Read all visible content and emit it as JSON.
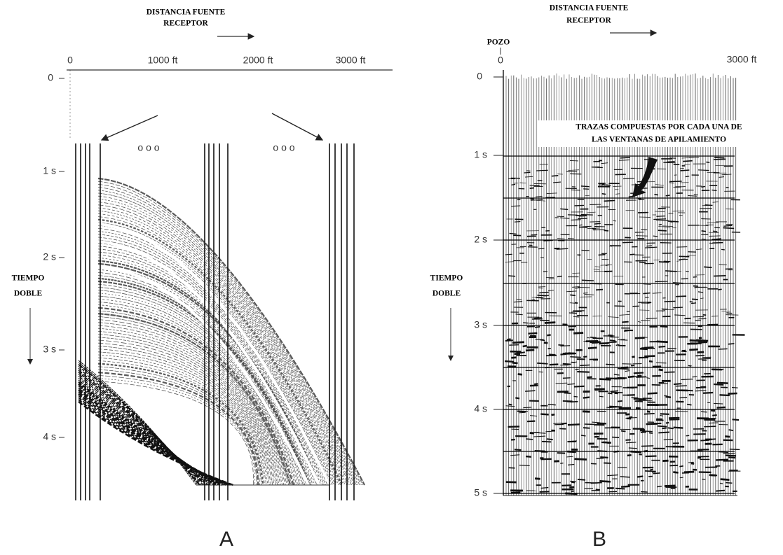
{
  "panel_a": {
    "x_axis_title": [
      "DISTANCIA FUENTE",
      "RECEPTOR"
    ],
    "x_labels": [
      "0",
      "1000 ft",
      "2000 ft",
      "3000 ft"
    ],
    "y_labels": [
      "0",
      "1 s",
      "2 s",
      "3 s",
      "4 s"
    ],
    "y_axis_title": [
      "TIEMPO",
      "DOBLE"
    ],
    "ellipses": [
      "o o o",
      "o o o"
    ],
    "label": "A"
  },
  "panel_b": {
    "x_axis_title": [
      "DISTANCIA FUENTE",
      "RECEPTOR"
    ],
    "well_label": "POZO",
    "x_labels": [
      "0",
      "3000 ft"
    ],
    "y_labels": [
      "0",
      "1 s",
      "2 s",
      "3 s",
      "4 s",
      "5 s"
    ],
    "y_axis_title": [
      "TIEMPO",
      "DOBLE"
    ],
    "annotation": [
      "TRAZAS COMPUESTAS POR CADA UNA DE",
      "LAS VENTANAS DE APILAMIENTO"
    ],
    "label": "B"
  }
}
